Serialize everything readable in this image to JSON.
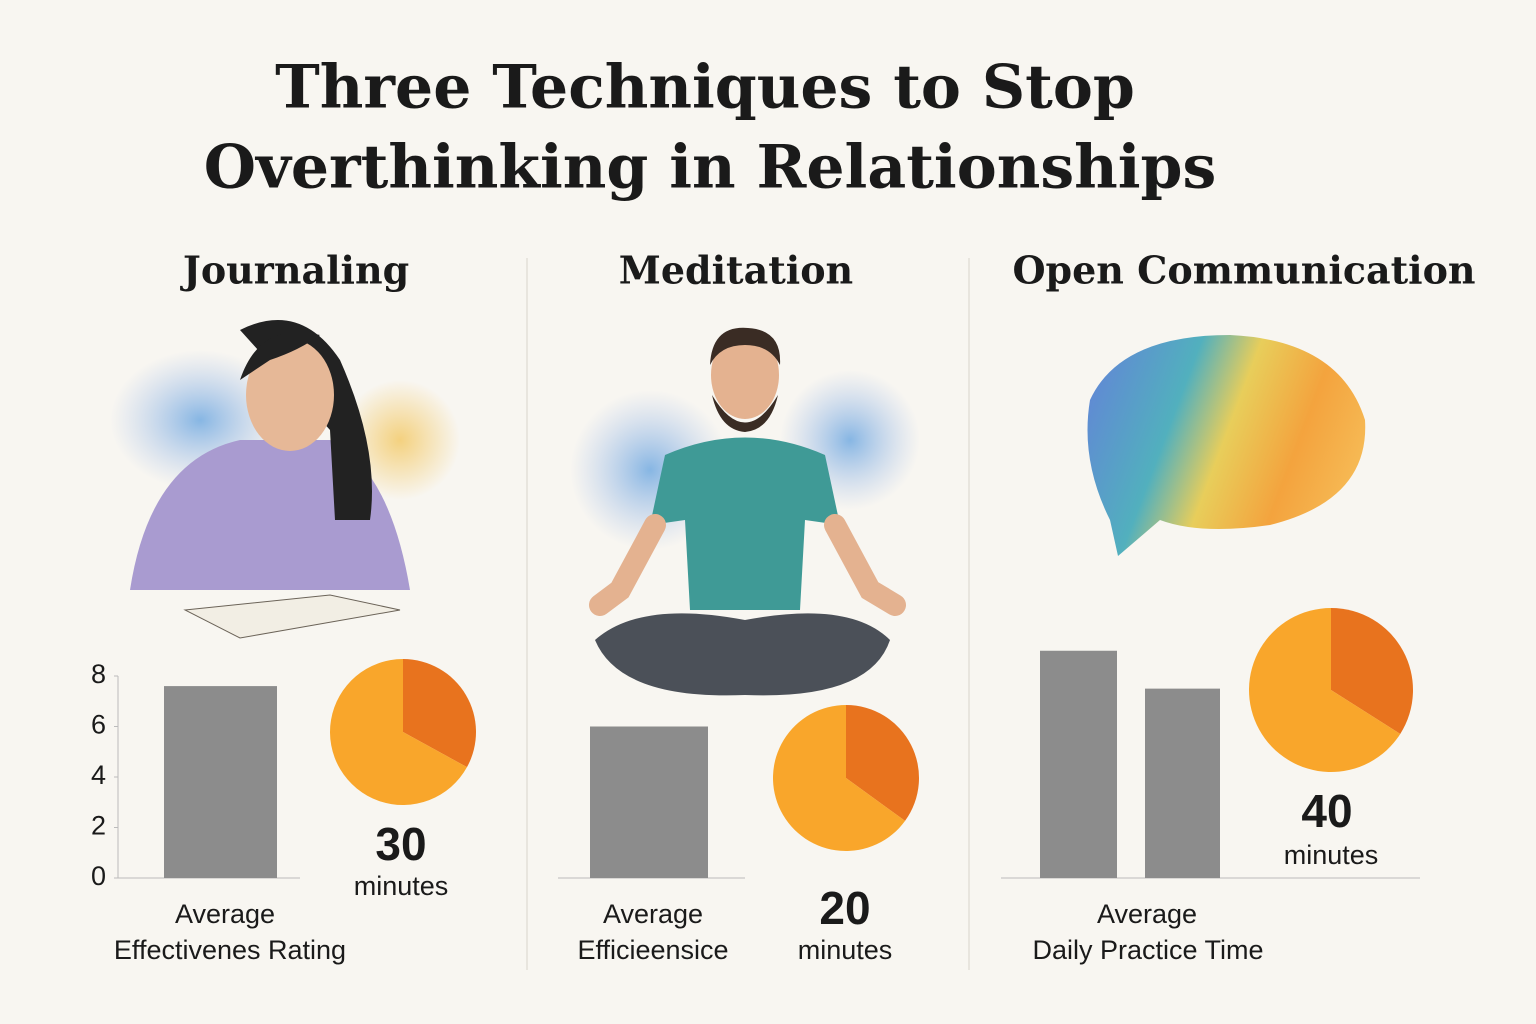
{
  "title": [
    "Three Techniques to Stop",
    "Overthinking in Relationships"
  ],
  "chart_data": [
    {
      "type": "bar",
      "title": "Journaling",
      "categories": [
        null
      ],
      "values": [
        7.6
      ],
      "color": "#8c8c8c",
      "ylim": [
        0,
        8
      ],
      "yticks": [
        0,
        2,
        4,
        6,
        8
      ],
      "xlabel": [
        "Average",
        "Effectivenes Rating"
      ]
    },
    {
      "type": "pie",
      "values": [
        33,
        67
      ],
      "colors": [
        "#e8731e",
        "#f9a62b"
      ],
      "annotation": {
        "value": 30,
        "unit": "minutes"
      }
    },
    {
      "type": "bar",
      "title": "Meditation",
      "categories": [
        null
      ],
      "values": [
        6
      ],
      "color": "#8c8c8c",
      "ylim": [
        0,
        10
      ],
      "xlabel": [
        "Average",
        "Efficieensice"
      ]
    },
    {
      "type": "pie",
      "values": [
        35,
        65
      ],
      "colors": [
        "#e8731e",
        "#f9a62b"
      ],
      "annotation": {
        "value": 20,
        "unit": "minutes"
      }
    },
    {
      "type": "bar",
      "title": "Open Communication",
      "categories": [
        null,
        null
      ],
      "values": [
        9,
        7.5
      ],
      "color": "#8c8c8c",
      "ylim": [
        0,
        10
      ],
      "xlabel": [
        "Average",
        "Daily Practice Time"
      ]
    },
    {
      "type": "pie",
      "values": [
        34,
        66
      ],
      "colors": [
        "#e8731e",
        "#f9a62b"
      ],
      "annotation": {
        "value": 40,
        "unit": "minutes"
      }
    }
  ]
}
